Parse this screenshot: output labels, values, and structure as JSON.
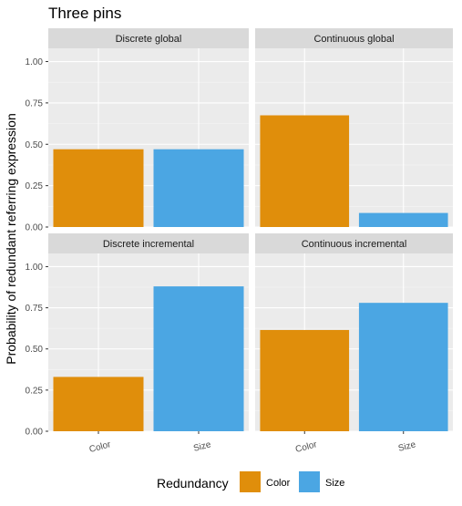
{
  "chart_data": {
    "type": "bar",
    "title": "Three pins",
    "ylabel": "Probability of redundant referring expression",
    "xlabel": "",
    "ylim": [
      0,
      1.08
    ],
    "yticks": [
      "0.00",
      "0.25",
      "0.50",
      "0.75",
      "1.00"
    ],
    "ytick_values": [
      0,
      0.25,
      0.5,
      0.75,
      1.0
    ],
    "categories": [
      "Color",
      "Size"
    ],
    "colors": {
      "Color": "#E08E0B",
      "Size": "#4BA6E3"
    },
    "grid": true,
    "legend": {
      "title": "Redundancy",
      "placement": "bottom",
      "entries": [
        {
          "label": "Color",
          "color": "#E08E0B"
        },
        {
          "label": "Size",
          "color": "#4BA6E3"
        }
      ]
    },
    "panels": [
      {
        "name": "Discrete global",
        "values": [
          0.47,
          0.47
        ]
      },
      {
        "name": "Continuous global",
        "values": [
          0.675,
          0.085
        ]
      },
      {
        "name": "Discrete incremental",
        "values": [
          0.33,
          0.88
        ]
      },
      {
        "name": "Continuous incremental",
        "values": [
          0.615,
          0.78
        ]
      }
    ]
  }
}
